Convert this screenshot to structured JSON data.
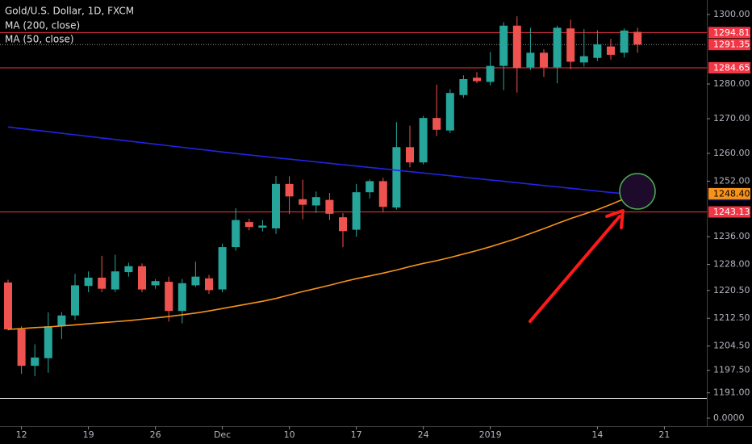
{
  "chart_data": {
    "type": "candlestick",
    "title": "Gold/U.S. Dollar, 1D, FXCM",
    "categories": [
      null,
      "12",
      null,
      null,
      null,
      null,
      "19",
      null,
      null,
      null,
      null,
      "26",
      null,
      null,
      null,
      null,
      "Dec",
      null,
      null,
      null,
      null,
      "10",
      null,
      null,
      null,
      null,
      "17",
      null,
      null,
      null,
      null,
      "24",
      null,
      null,
      null,
      null,
      "2019",
      null,
      null,
      null,
      null,
      null,
      null,
      null,
      "14",
      null,
      null,
      null,
      null,
      "21"
    ],
    "up_color": "#26a69a",
    "down_color": "#ef5350",
    "open": [
      1222.8,
      1209.3,
      1198.8,
      1201.0,
      1210.2,
      1213.3,
      1221.8,
      1224.2,
      1220.8,
      1225.8,
      1227.5,
      1222.0,
      1223.0,
      1214.6,
      1222.0,
      1224.0,
      1220.8,
      1233.0,
      1240.2,
      1238.6,
      1238.4,
      1251.2,
      1246.8,
      1245.0,
      1246.6,
      1241.6,
      1238.0,
      1248.8,
      1252.0,
      1244.4,
      1261.8,
      1257.4,
      1270.2,
      1266.6,
      1276.8,
      1281.8,
      1280.6,
      1285.2,
      1296.8,
      1284.8,
      1289.0,
      1284.8,
      1296.0,
      1286.2,
      1287.5,
      1290.8,
      1289.0,
      1295.0,
      null,
      null
    ],
    "high": [
      1223.6,
      1210.2,
      1205.0,
      1214.2,
      1214.3,
      1225.3,
      1226.0,
      1230.5,
      1230.8,
      1228.5,
      1228.3,
      1223.8,
      1224.5,
      1223.8,
      1228.8,
      1225.0,
      1234.0,
      1244.2,
      1241.2,
      1240.8,
      1253.5,
      1253.4,
      1252.4,
      1249.0,
      1248.6,
      1242.8,
      1251.2,
      1252.5,
      1253.0,
      1269.0,
      1268.0,
      1270.8,
      1279.8,
      1278.5,
      1282.5,
      1283.4,
      1289.2,
      1297.8,
      1299.5,
      1296.2,
      1290.0,
      1296.8,
      1298.5,
      1295.8,
      1295.5,
      1293.0,
      1296.0,
      1296.2,
      null,
      null
    ],
    "low": [
      1209.0,
      1196.5,
      1195.8,
      1196.8,
      1206.5,
      1212.0,
      1220.0,
      1220.0,
      1220.0,
      1224.5,
      1220.0,
      1221.0,
      1211.5,
      1211.0,
      1221.5,
      1219.5,
      1220.0,
      1232.0,
      1237.8,
      1237.5,
      1236.8,
      1242.5,
      1241.0,
      1242.8,
      1240.8,
      1233.0,
      1236.0,
      1247.0,
      1243.2,
      1243.8,
      1256.0,
      1256.8,
      1265.0,
      1265.8,
      1276.0,
      1280.2,
      1279.6,
      1278.2,
      1277.5,
      1284.0,
      1282.0,
      1280.2,
      1284.2,
      1285.0,
      1286.6,
      1287.0,
      1287.6,
      1289.0,
      null,
      null
    ],
    "close": [
      1209.3,
      1198.8,
      1201.2,
      1210.2,
      1213.3,
      1222.0,
      1224.2,
      1221.0,
      1226.0,
      1227.5,
      1220.8,
      1223.2,
      1214.6,
      1222.6,
      1224.5,
      1220.6,
      1233.0,
      1240.8,
      1238.8,
      1239.2,
      1251.2,
      1247.6,
      1245.2,
      1247.4,
      1242.6,
      1237.6,
      1248.8,
      1252.0,
      1244.6,
      1261.8,
      1257.4,
      1270.2,
      1266.8,
      1277.4,
      1281.4,
      1280.8,
      1285.2,
      1296.8,
      1284.6,
      1289.0,
      1284.8,
      1296.2,
      1286.4,
      1288.0,
      1291.4,
      1288.4,
      1295.4,
      1291.35,
      null,
      null
    ],
    "series": [
      {
        "name": "MA (200, close)",
        "color": "#2323e6",
        "values": [
          1267.6,
          1267.15,
          1266.7,
          1266.25,
          1265.8,
          1265.35,
          1264.9,
          1264.45,
          1264.0,
          1263.55,
          1263.1,
          1262.65,
          1262.2,
          1261.75,
          1261.3,
          1260.85,
          1260.4,
          1259.95,
          1259.55,
          1259.15,
          1258.75,
          1258.35,
          1257.95,
          1257.55,
          1257.15,
          1256.75,
          1256.35,
          1255.95,
          1255.55,
          1255.15,
          1254.75,
          1254.35,
          1253.95,
          1253.55,
          1253.15,
          1252.75,
          1252.35,
          1251.95,
          1251.55,
          1251.15,
          1250.75,
          1250.35,
          1249.95,
          1249.55,
          1249.15,
          1248.75,
          1248.4,
          1248.09,
          null,
          null
        ]
      },
      {
        "name": "MA (50, close)",
        "color": "#f7931a",
        "values": [
          1209.3,
          1209.5,
          1209.8,
          1210.0,
          1210.3,
          1210.6,
          1210.9,
          1211.2,
          1211.5,
          1211.8,
          1212.2,
          1212.6,
          1213.0,
          1213.5,
          1214.0,
          1214.6,
          1215.3,
          1216.0,
          1216.7,
          1217.4,
          1218.2,
          1219.2,
          1220.2,
          1221.1,
          1222.0,
          1223.0,
          1223.9,
          1224.7,
          1225.5,
          1226.4,
          1227.4,
          1228.3,
          1229.1,
          1230.0,
          1231.0,
          1232.0,
          1233.1,
          1234.3,
          1235.5,
          1236.9,
          1238.3,
          1239.8,
          1241.2,
          1242.5,
          1243.8,
          1245.3,
          1246.9,
          1248.4,
          null,
          null
        ],
        "badge": {
          "value": 1248.4,
          "label": "1248.40"
        }
      }
    ],
    "levels": [
      {
        "value": 1294.81,
        "color": "#f23645",
        "style": "solid"
      },
      {
        "value": 1291.35,
        "color": "#f23645",
        "style": "dotted"
      },
      {
        "value": 1284.65,
        "color": "#f23645",
        "style": "solid"
      },
      {
        "value": 1243.13,
        "color": "#f23645",
        "style": "solid"
      }
    ],
    "ylim": [
      1189.53,
      1304.19
    ],
    "yticks": [
      {
        "value": 1300,
        "label": "1300.00"
      },
      {
        "value": 1280,
        "label": "1280.00"
      },
      {
        "value": 1270,
        "label": "1270.00"
      },
      {
        "value": 1260,
        "label": "1260.00"
      },
      {
        "value": 1252,
        "label": "1252.00"
      },
      {
        "value": 1236,
        "label": "1236.00"
      },
      {
        "value": 1228,
        "label": "1228.00"
      },
      {
        "value": 1220.5,
        "label": "1220.50"
      },
      {
        "value": 1212.5,
        "label": "1212.50"
      },
      {
        "value": 1204.5,
        "label": "1204.50"
      },
      {
        "value": 1197.5,
        "label": "1197.50"
      },
      {
        "value": 1191,
        "label": "1191.00"
      }
    ],
    "lower_pane": {
      "ylim": [
        -0.6,
        1.5
      ],
      "yticks": [
        {
          "value": 0,
          "label": "0.0000"
        }
      ]
    }
  }
}
